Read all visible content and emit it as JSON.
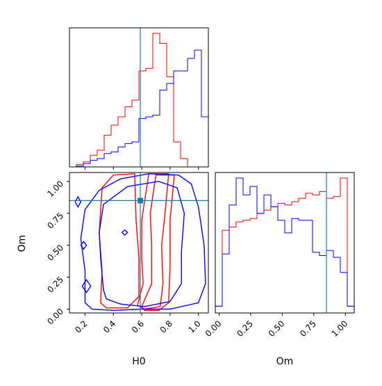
{
  "colors": {
    "red": "#ff0000",
    "blue": "#0000ff",
    "truth": "#1f77b4",
    "axis": "#000000"
  },
  "chart_data": {
    "type": "corner",
    "parameters": [
      "H0",
      "Om"
    ],
    "truth": {
      "H0": 0.59,
      "Om": 0.85
    },
    "xlabels": {
      "H0": "H0",
      "Om": "Om"
    },
    "ylabels": {
      "Om": "Om"
    },
    "ticks": {
      "H0": [
        "0.2",
        "0.4",
        "0.6",
        "0.8",
        "1.0"
      ],
      "Om": [
        "0.00",
        "0.25",
        "0.50",
        "0.75",
        "1.00"
      ]
    },
    "ranges": {
      "H0": [
        0.09,
        1.07
      ],
      "Om": [
        -0.03,
        1.07
      ]
    },
    "hist_H0": {
      "bin_edges": [
        0.09,
        0.139,
        0.188,
        0.237,
        0.286,
        0.335,
        0.384,
        0.433,
        0.482,
        0.531,
        0.58,
        0.629,
        0.678,
        0.727,
        0.776,
        0.825,
        0.874,
        0.923,
        0.972,
        1.021,
        1.07
      ],
      "series": [
        {
          "color": "red",
          "values": [
            0,
            3,
            6,
            14,
            20,
            38,
            50,
            60,
            72,
            80,
            115,
            118,
            160,
            148,
            108,
            30,
            10,
            0,
            0,
            0
          ]
        },
        {
          "color": "blue",
          "values": [
            0,
            1,
            4,
            8,
            10,
            16,
            18,
            24,
            28,
            30,
            58,
            60,
            62,
            92,
            100,
            115,
            115,
            130,
            140,
            60
          ]
        }
      ]
    },
    "hist_Om": {
      "bin_edges": [
        -0.03,
        0.025,
        0.08,
        0.135,
        0.19,
        0.245,
        0.3,
        0.355,
        0.41,
        0.465,
        0.52,
        0.575,
        0.63,
        0.685,
        0.74,
        0.795,
        0.85,
        0.905,
        0.96,
        1.015,
        1.07
      ],
      "series": [
        {
          "color": "red",
          "values": [
            8,
            98,
            102,
            108,
            110,
            112,
            118,
            122,
            126,
            130,
            128,
            132,
            136,
            142,
            140,
            144,
            136,
            138,
            160,
            8
          ]
        },
        {
          "color": "blue",
          "values": [
            8,
            70,
            128,
            160,
            140,
            150,
            118,
            140,
            126,
            110,
            95,
            112,
            110,
            110,
            72,
            68,
            74,
            66,
            48,
            8
          ]
        }
      ]
    },
    "contours": [
      {
        "color": "red",
        "points": [
          [
            0.31,
            0.05
          ],
          [
            0.32,
            0.3
          ],
          [
            0.3,
            0.6
          ],
          [
            0.32,
            0.95
          ],
          [
            0.4,
            1.05
          ],
          [
            0.55,
            1.06
          ],
          [
            0.56,
            0.7
          ],
          [
            0.58,
            0.4
          ],
          [
            0.58,
            0.1
          ],
          [
            0.5,
            0.01
          ],
          [
            0.35,
            0.01
          ],
          [
            0.31,
            0.05
          ]
        ]
      },
      {
        "color": "red",
        "points": [
          [
            0.57,
            0.03
          ],
          [
            0.61,
            0.2
          ],
          [
            0.6,
            0.4
          ],
          [
            0.6,
            0.7
          ],
          [
            0.65,
            1.06
          ],
          [
            0.79,
            1.06
          ],
          [
            0.76,
            0.7
          ],
          [
            0.74,
            0.5
          ],
          [
            0.75,
            0.2
          ],
          [
            0.73,
            0.02
          ],
          [
            0.62,
            0.0
          ],
          [
            0.57,
            0.03
          ]
        ]
      },
      {
        "color": "red",
        "points": [
          [
            0.6,
            0.02
          ],
          [
            0.67,
            0.2
          ],
          [
            0.67,
            0.5
          ],
          [
            0.66,
            0.75
          ],
          [
            0.7,
            1.05
          ],
          [
            0.83,
            1.05
          ],
          [
            0.8,
            0.7
          ],
          [
            0.8,
            0.35
          ],
          [
            0.79,
            0.05
          ],
          [
            0.72,
            -0.01
          ],
          [
            0.62,
            -0.01
          ],
          [
            0.6,
            0.02
          ]
        ]
      },
      {
        "color": "blue",
        "points": [
          [
            0.2,
            0.05
          ],
          [
            0.2,
            0.3
          ],
          [
            0.17,
            0.55
          ],
          [
            0.2,
            0.78
          ],
          [
            0.3,
            0.93
          ],
          [
            0.45,
            1.02
          ],
          [
            0.65,
            1.06
          ],
          [
            0.86,
            1.05
          ],
          [
            0.95,
            0.98
          ],
          [
            1.0,
            0.8
          ],
          [
            1.04,
            0.5
          ],
          [
            1.05,
            0.2
          ],
          [
            1.0,
            0.05
          ],
          [
            0.8,
            0.0
          ],
          [
            0.6,
            0.0
          ],
          [
            0.4,
            -0.01
          ],
          [
            0.25,
            0.0
          ],
          [
            0.2,
            0.05
          ]
        ]
      },
      {
        "color": "blue",
        "points": [
          [
            0.33,
            0.15
          ],
          [
            0.31,
            0.4
          ],
          [
            0.3,
            0.6
          ],
          [
            0.33,
            0.82
          ],
          [
            0.5,
            0.96
          ],
          [
            0.72,
            1.0
          ],
          [
            0.85,
            0.95
          ],
          [
            0.9,
            0.75
          ],
          [
            0.88,
            0.45
          ],
          [
            0.88,
            0.2
          ],
          [
            0.8,
            0.06
          ],
          [
            0.62,
            0.02
          ],
          [
            0.45,
            0.04
          ],
          [
            0.35,
            0.08
          ],
          [
            0.33,
            0.15
          ]
        ]
      },
      {
        "color": "blue",
        "points": [
          [
            0.13,
            0.84
          ],
          [
            0.15,
            0.8
          ],
          [
            0.17,
            0.84
          ],
          [
            0.15,
            0.88
          ],
          [
            0.13,
            0.84
          ]
        ]
      },
      {
        "color": "blue",
        "points": [
          [
            0.17,
            0.5
          ],
          [
            0.19,
            0.47
          ],
          [
            0.21,
            0.5
          ],
          [
            0.19,
            0.53
          ],
          [
            0.17,
            0.5
          ]
        ]
      },
      {
        "color": "blue",
        "points": [
          [
            0.18,
            0.18
          ],
          [
            0.21,
            0.13
          ],
          [
            0.24,
            0.18
          ],
          [
            0.21,
            0.23
          ],
          [
            0.18,
            0.18
          ]
        ]
      },
      {
        "color": "blue",
        "points": [
          [
            0.46,
            0.6
          ],
          [
            0.48,
            0.58
          ],
          [
            0.5,
            0.6
          ],
          [
            0.48,
            0.62
          ],
          [
            0.46,
            0.6
          ]
        ]
      }
    ]
  }
}
